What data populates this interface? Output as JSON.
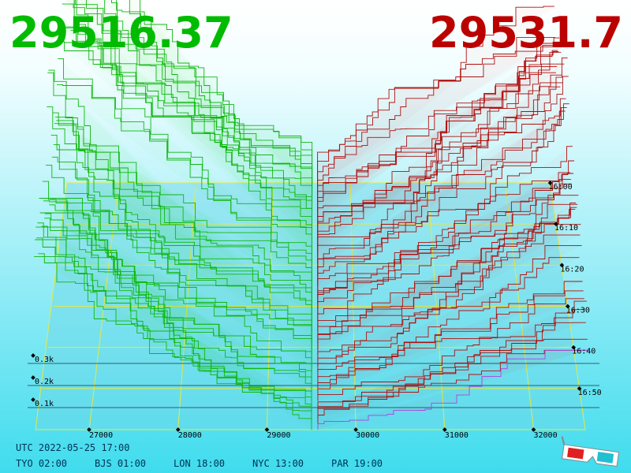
{
  "header": {
    "bid": "29516.37",
    "ask": "29531.7"
  },
  "price_axis": {
    "ticks": [
      27000,
      28000,
      29000,
      30000,
      31000,
      32000
    ]
  },
  "depth_axis": {
    "ticks": [
      {
        "value": 100,
        "label": "0.1k"
      },
      {
        "value": 200,
        "label": "0.2k"
      },
      {
        "value": 300,
        "label": "0.3k"
      }
    ]
  },
  "time_axis": {
    "ticks": [
      "16:00",
      "16:10",
      "16:20",
      "16:30",
      "16:40",
      "16:50"
    ]
  },
  "footer": {
    "utc": "UTC 2022-05-25 17:00",
    "cities": [
      "TYO 02:00",
      "BJS 01:00",
      "LON 18:00",
      "NYC 13:00",
      "PAR 19:00"
    ]
  }
}
